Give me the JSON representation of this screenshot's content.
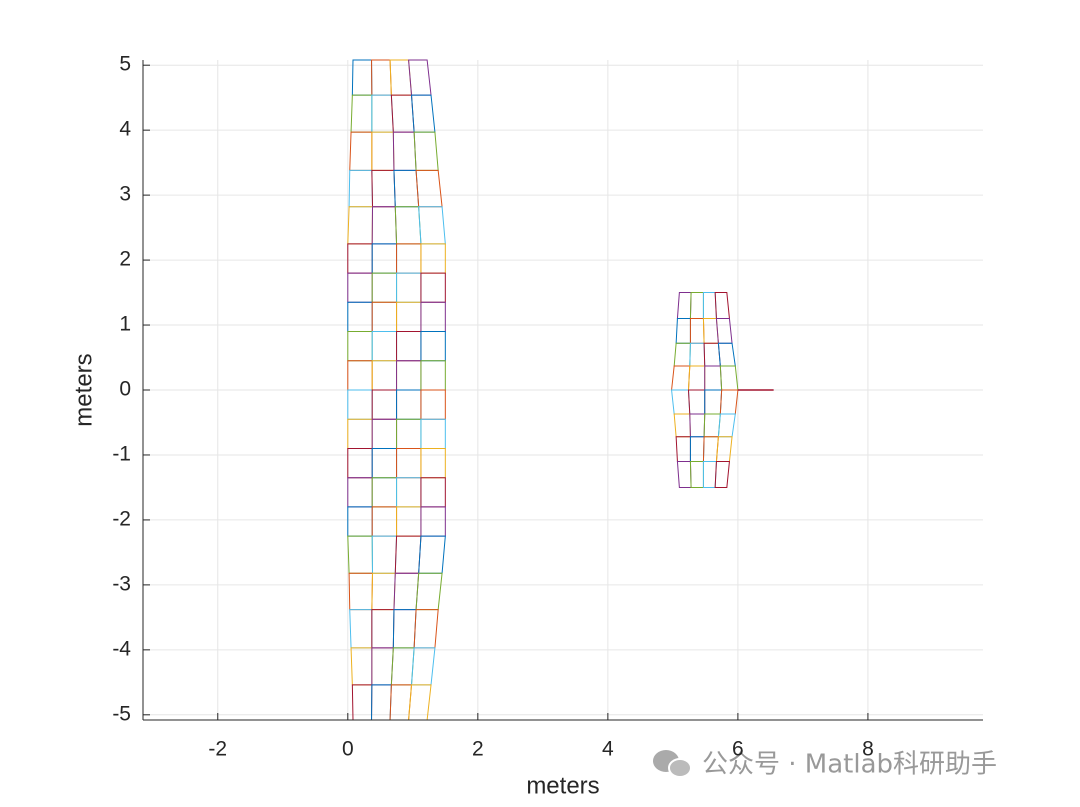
{
  "chart_data": {
    "type": "panels",
    "xlabel": "meters",
    "ylabel": "meters",
    "xlim": [
      -3.15,
      9.77
    ],
    "ylim": [
      -5.08,
      5.08
    ],
    "xticks": [
      -2,
      0,
      2,
      4,
      6,
      8
    ],
    "yticks": [
      -5,
      -4,
      -3,
      -2,
      -1,
      0,
      1,
      2,
      3,
      4,
      5
    ],
    "grid": true,
    "colors": [
      "#0072BD",
      "#D95319",
      "#EDB120",
      "#7E2F8E",
      "#77AC30",
      "#4DBEEE",
      "#A2142F"
    ],
    "surfaces": [
      {
        "y": [
          5.08,
          4.54,
          3.97,
          3.38,
          2.82,
          2.25,
          1.8,
          1.35,
          0.9,
          0.45,
          0,
          -0.45,
          -0.9,
          -1.35,
          -1.8,
          -2.25,
          -2.82,
          -3.38,
          -3.97,
          -4.54,
          -5.08
        ],
        "x": [
          [
            0.08,
            0.365,
            0.65,
            0.935,
            1.22
          ],
          [
            0.07,
            0.37,
            0.67,
            0.98,
            1.28
          ],
          [
            0.05,
            0.37,
            0.7,
            1.02,
            1.34
          ],
          [
            0.03,
            0.37,
            0.71,
            1.05,
            1.39
          ],
          [
            0.02,
            0.38,
            0.73,
            1.09,
            1.45
          ],
          [
            0,
            0.375,
            0.75,
            1.125,
            1.5
          ],
          [
            0,
            0.375,
            0.75,
            1.125,
            1.5
          ],
          [
            0,
            0.375,
            0.75,
            1.125,
            1.5
          ],
          [
            0,
            0.375,
            0.75,
            1.125,
            1.5
          ],
          [
            0,
            0.375,
            0.75,
            1.125,
            1.5
          ],
          [
            0,
            0.375,
            0.75,
            1.125,
            1.5
          ],
          [
            0,
            0.375,
            0.75,
            1.125,
            1.5
          ],
          [
            0,
            0.375,
            0.75,
            1.125,
            1.5
          ],
          [
            0,
            0.375,
            0.75,
            1.125,
            1.5
          ],
          [
            0,
            0.375,
            0.75,
            1.125,
            1.5
          ],
          [
            0,
            0.375,
            0.75,
            1.125,
            1.5
          ],
          [
            0.02,
            0.38,
            0.73,
            1.09,
            1.45
          ],
          [
            0.03,
            0.37,
            0.71,
            1.05,
            1.39
          ],
          [
            0.05,
            0.37,
            0.7,
            1.02,
            1.34
          ],
          [
            0.07,
            0.37,
            0.67,
            0.98,
            1.28
          ],
          [
            0.08,
            0.365,
            0.65,
            0.935,
            1.22
          ]
        ]
      },
      {
        "y": [
          1.5,
          1.1,
          0.72,
          0.37,
          0,
          -0.37,
          -0.72,
          -1.1,
          -1.5
        ],
        "x": [
          [
            5.1,
            5.28,
            5.47,
            5.65,
            5.83
          ],
          [
            5.07,
            5.27,
            5.47,
            5.67,
            5.87
          ],
          [
            5.05,
            5.27,
            5.48,
            5.7,
            5.91
          ],
          [
            5.02,
            5.26,
            5.49,
            5.73,
            5.96
          ],
          [
            4.98,
            5.24,
            5.49,
            5.75,
            6.0
          ],
          [
            5.02,
            5.26,
            5.49,
            5.73,
            5.96
          ],
          [
            5.05,
            5.27,
            5.48,
            5.7,
            5.91
          ],
          [
            5.07,
            5.27,
            5.47,
            5.67,
            5.87
          ],
          [
            5.1,
            5.28,
            5.47,
            5.65,
            5.83
          ]
        ]
      }
    ],
    "fuselage": {
      "x": [
        6.0,
        6.55
      ],
      "y": [
        0,
        0
      ],
      "color": "#A2142F"
    },
    "watermark": "公众号 · Matlab科研助手"
  }
}
